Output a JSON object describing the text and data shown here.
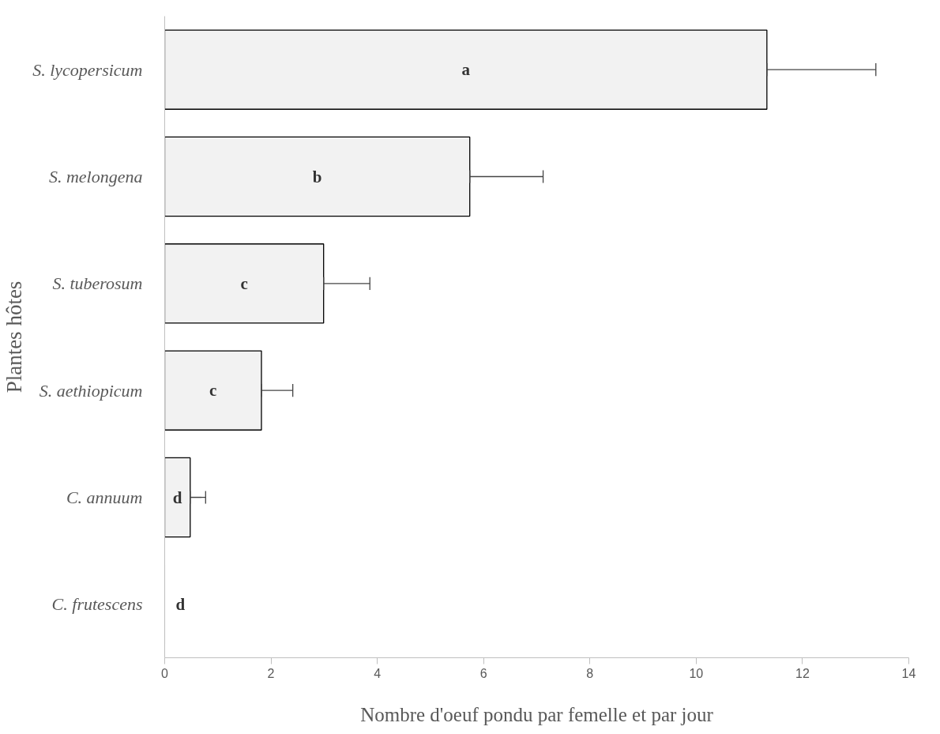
{
  "chart_data": {
    "type": "bar",
    "orientation": "horizontal",
    "xlabel": "Nombre d'oeuf pondu par femelle et par jour",
    "ylabel": "Plantes hôtes",
    "categories": [
      "S. lycopersicum",
      "S. melongena",
      "S. tuberosum",
      "S. aethiopicum",
      "C. annuum",
      "C. frutescens"
    ],
    "values": [
      11.33,
      5.74,
      2.99,
      1.82,
      0.48,
      0
    ],
    "errors": [
      [
        11.33,
        13.38
      ],
      [
        5.74,
        7.12
      ],
      [
        2.99,
        3.86
      ],
      [
        1.82,
        2.41
      ],
      [
        0.48,
        0.77
      ],
      null
    ],
    "color": "#f2f2f2",
    "xlim": [
      0,
      14
    ],
    "xticks": [
      0,
      2,
      4,
      6,
      8,
      10,
      12,
      14
    ],
    "grid": false,
    "value_labels": [
      "a",
      "b",
      "c",
      "c",
      "d",
      "d"
    ]
  }
}
